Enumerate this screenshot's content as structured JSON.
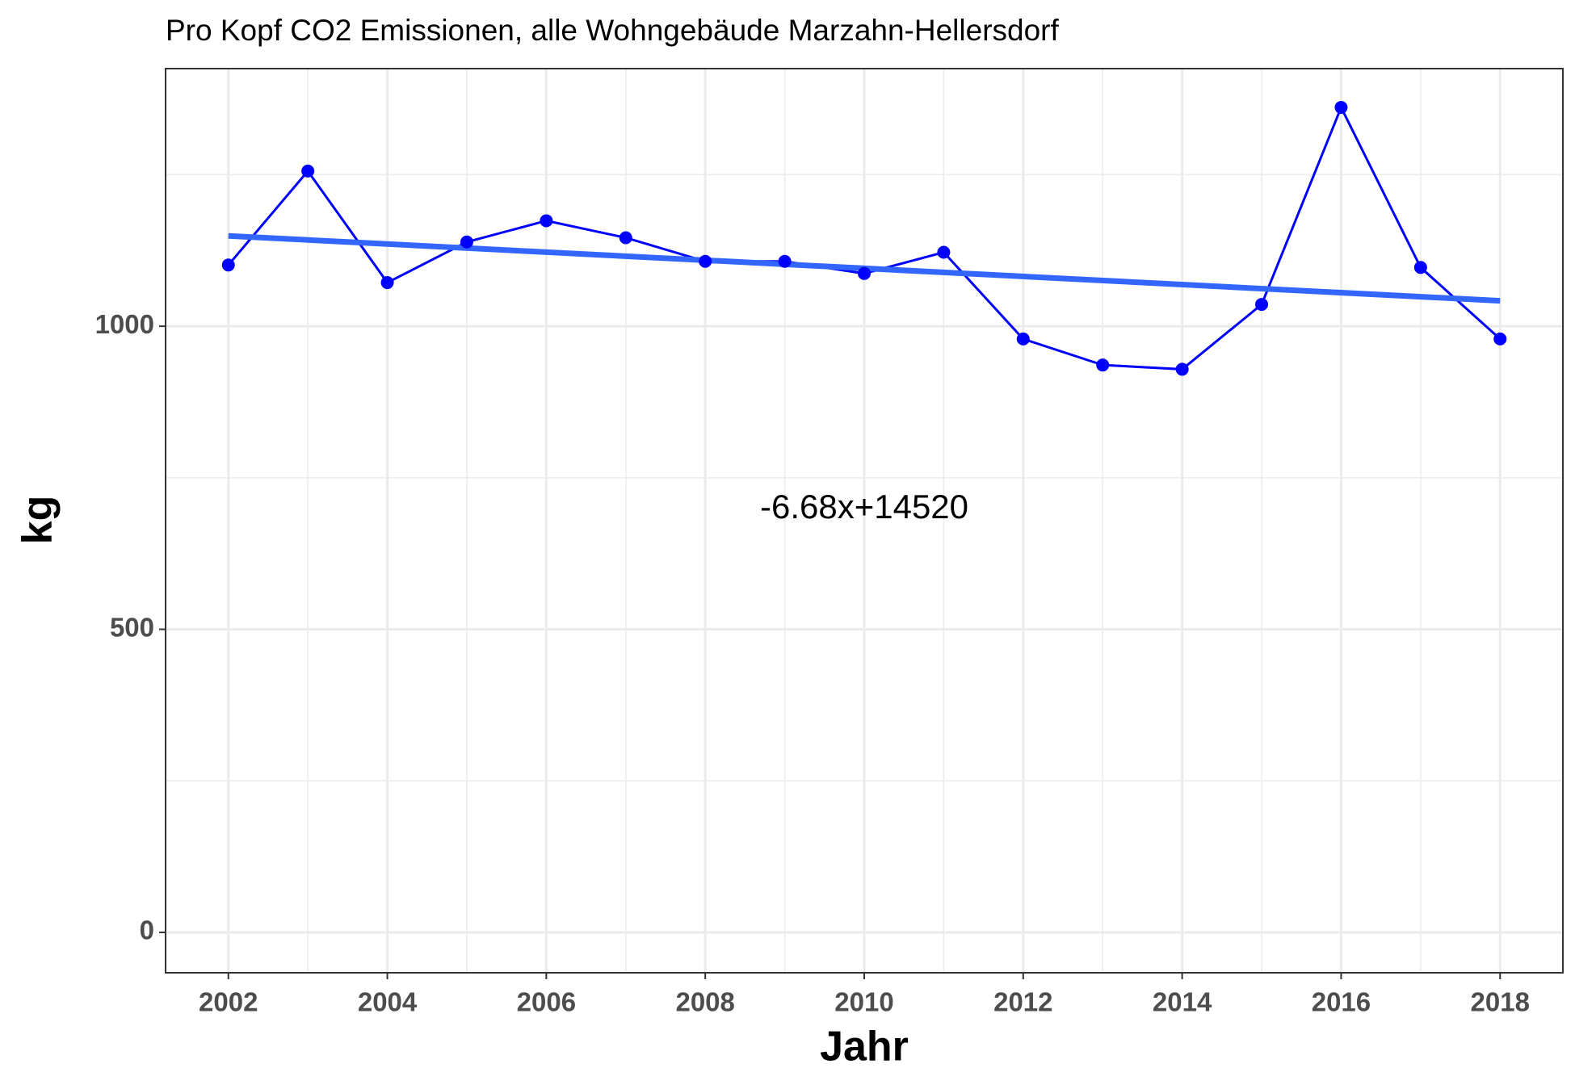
{
  "chart_data": {
    "type": "line",
    "title": "Pro Kopf CO2 Emissionen, alle Wohngebäude Marzahn-Hellersdorf",
    "x_label": "Jahr",
    "y_label": "kg",
    "annotation": "-6.68x+14520",
    "x": [
      2002,
      2003,
      2004,
      2005,
      2006,
      2007,
      2008,
      2009,
      2010,
      2011,
      2012,
      2013,
      2014,
      2015,
      2016,
      2017,
      2018
    ],
    "values": [
      1101,
      1256,
      1072,
      1139,
      1174,
      1146,
      1107,
      1107,
      1087,
      1122,
      979,
      936,
      929,
      1036,
      1361,
      1097,
      979
    ],
    "color": "#0000ff",
    "trend": {
      "x": [
        2002,
        2018
      ],
      "values": [
        1149,
        1042
      ],
      "color": "#3366ff"
    },
    "xlim": [
      2001.21,
      2018.79
    ],
    "ylim": [
      -66.6,
      1425
    ],
    "xticks": [
      2002,
      2004,
      2006,
      2008,
      2010,
      2012,
      2014,
      2016,
      2018
    ],
    "minor_xticks": [
      2003,
      2005,
      2007,
      2009,
      2011,
      2013,
      2015,
      2017
    ],
    "yticks": [
      0,
      500,
      1000
    ],
    "minor_yticks": [
      250,
      750,
      1250
    ],
    "grid": true
  }
}
